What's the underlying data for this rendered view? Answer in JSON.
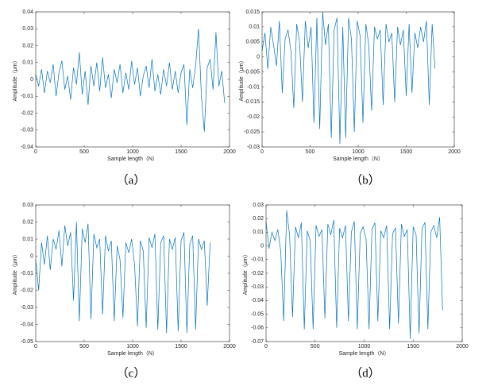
{
  "chart_data": [
    {
      "type": "line",
      "caption": "（a）",
      "xlabel": "Sample length（N）",
      "ylabel": "Amplitude（μm）",
      "color": "#0072bd",
      "xlim": [
        0,
        2000
      ],
      "xticks": [
        0,
        500,
        1000,
        1500,
        2000
      ],
      "ylim": [
        -0.04,
        0.04
      ],
      "yticks": [
        -0.04,
        -0.03,
        -0.02,
        -0.01,
        0,
        0.01,
        0.02,
        0.03,
        0.04
      ],
      "x": [
        0,
        30,
        60,
        90,
        120,
        150,
        180,
        210,
        240,
        270,
        300,
        330,
        360,
        390,
        420,
        450,
        480,
        510,
        540,
        570,
        600,
        630,
        660,
        690,
        720,
        750,
        780,
        810,
        840,
        870,
        900,
        930,
        960,
        990,
        1020,
        1050,
        1080,
        1110,
        1140,
        1170,
        1200,
        1230,
        1260,
        1290,
        1320,
        1350,
        1380,
        1410,
        1440,
        1470,
        1500,
        1530,
        1560,
        1590,
        1620,
        1650,
        1680,
        1710,
        1740,
        1770,
        1800,
        1830,
        1860,
        1890,
        1920,
        1950
      ],
      "values": [
        0.003,
        -0.004,
        0.006,
        -0.008,
        0.005,
        -0.002,
        0.009,
        -0.01,
        0.004,
        0.011,
        -0.006,
        0.002,
        -0.012,
        0.007,
        -0.003,
        0.016,
        -0.009,
        0.005,
        -0.015,
        0.008,
        -0.004,
        0.01,
        -0.007,
        0.013,
        -0.005,
        0.003,
        -0.011,
        0.006,
        -0.002,
        0.009,
        -0.008,
        0.004,
        -0.006,
        0.011,
        -0.003,
        0.007,
        -0.01,
        0.002,
        0.008,
        -0.005,
        0.012,
        -0.007,
        0.003,
        -0.009,
        0.006,
        -0.004,
        0.01,
        -0.006,
        0.005,
        -0.008,
        0.004,
        0.009,
        -0.027,
        0.006,
        -0.005,
        0.008,
        0.03,
        -0.01,
        -0.031,
        0.007,
        0.012,
        -0.006,
        0.028,
        -0.004,
        0.005,
        -0.014
      ]
    },
    {
      "type": "line",
      "caption": "（b）",
      "xlabel": "Sample length（N）",
      "ylabel": "Amplitude（μm）",
      "color": "#0072bd",
      "xlim": [
        0,
        2000
      ],
      "xticks": [
        0,
        500,
        1000,
        1500,
        2000
      ],
      "ylim": [
        -0.03,
        0.015
      ],
      "yticks": [
        -0.03,
        -0.025,
        -0.02,
        -0.015,
        -0.01,
        -0.005,
        0,
        0.005,
        0.01,
        0.015
      ],
      "x": [
        0,
        30,
        60,
        90,
        120,
        150,
        180,
        210,
        240,
        270,
        300,
        330,
        360,
        390,
        420,
        450,
        480,
        510,
        540,
        570,
        600,
        630,
        660,
        690,
        720,
        750,
        780,
        810,
        840,
        870,
        900,
        930,
        960,
        990,
        1020,
        1050,
        1080,
        1110,
        1140,
        1170,
        1200,
        1230,
        1260,
        1290,
        1320,
        1350,
        1380,
        1410,
        1440,
        1470,
        1500,
        1530,
        1560,
        1590,
        1620,
        1650,
        1680,
        1710,
        1740,
        1770,
        1800
      ],
      "values": [
        0.002,
        0.008,
        -0.004,
        0.01,
        0.004,
        -0.003,
        0.012,
        -0.012,
        0.006,
        0.009,
        0.002,
        -0.017,
        0.011,
        0.005,
        -0.015,
        0.012,
        0.003,
        0.01,
        -0.022,
        0.013,
        -0.024,
        0.015,
        0.004,
        0.011,
        -0.027,
        0.009,
        0.013,
        -0.029,
        0.01,
        -0.027,
        0.013,
        0.006,
        -0.025,
        0.012,
        0.007,
        -0.022,
        0.011,
        0.004,
        -0.018,
        0.01,
        0.006,
        0.009,
        -0.016,
        0.011,
        0.005,
        0.008,
        -0.015,
        0.01,
        0.004,
        0.009,
        -0.013,
        0.011,
        -0.012,
        0.008,
        0.003,
        0.01,
        0.005,
        0.012,
        -0.016,
        0.011,
        -0.004
      ]
    },
    {
      "type": "line",
      "caption": "（c）",
      "xlabel": "Sample length（N）",
      "ylabel": "Amplitude（μm）",
      "color": "#0072bd",
      "xlim": [
        0,
        2000
      ],
      "xticks": [
        0,
        500,
        1000,
        1500,
        2000
      ],
      "ylim": [
        -0.05,
        0.03
      ],
      "yticks": [
        -0.05,
        -0.04,
        -0.03,
        -0.02,
        -0.01,
        0,
        0.01,
        0.02,
        0.03
      ],
      "x": [
        0,
        30,
        60,
        90,
        120,
        150,
        180,
        210,
        240,
        270,
        300,
        330,
        360,
        390,
        420,
        450,
        480,
        510,
        540,
        570,
        600,
        630,
        660,
        690,
        720,
        750,
        780,
        810,
        840,
        870,
        900,
        930,
        960,
        990,
        1020,
        1050,
        1080,
        1110,
        1140,
        1170,
        1200,
        1230,
        1260,
        1290,
        1320,
        1350,
        1380,
        1410,
        1440,
        1470,
        1500,
        1530,
        1560,
        1590,
        1620,
        1650,
        1680,
        1710,
        1740,
        1770,
        1800
      ],
      "values": [
        -0.002,
        -0.02,
        0.008,
        -0.005,
        0.012,
        -0.008,
        0.01,
        0.004,
        0.015,
        -0.006,
        0.018,
        0.006,
        0.014,
        -0.026,
        0.02,
        -0.038,
        0.016,
        0.008,
        0.019,
        -0.037,
        0.013,
        0.005,
        0.01,
        -0.034,
        0.012,
        0.003,
        0.009,
        -0.038,
        0.006,
        -0.002,
        -0.036,
        0.008,
        0.002,
        0.01,
        -0.005,
        -0.041,
        0.009,
        0.003,
        -0.042,
        0.011,
        0.005,
        0.013,
        -0.043,
        0.008,
        0.012,
        -0.045,
        0.01,
        0.004,
        0.011,
        -0.044,
        0.009,
        0.014,
        -0.045,
        0.007,
        0.012,
        -0.043,
        0.01,
        0.004,
        0.009,
        -0.029,
        0.008
      ]
    },
    {
      "type": "line",
      "caption": "（d）",
      "xlabel": "Sample length（N）",
      "ylabel": "Amplitude（μm）",
      "color": "#0072bd",
      "xlim": [
        0,
        2000
      ],
      "xticks": [
        0,
        500,
        1000,
        1500,
        2000
      ],
      "ylim": [
        -0.07,
        0.03
      ],
      "yticks": [
        -0.07,
        -0.06,
        -0.05,
        -0.04,
        -0.03,
        -0.02,
        -0.01,
        0,
        0.01,
        0.02,
        0.03
      ],
      "x": [
        0,
        30,
        60,
        90,
        120,
        150,
        180,
        210,
        240,
        270,
        300,
        330,
        360,
        390,
        420,
        450,
        480,
        510,
        540,
        570,
        600,
        630,
        660,
        690,
        720,
        750,
        780,
        810,
        840,
        870,
        900,
        930,
        960,
        990,
        1020,
        1050,
        1080,
        1110,
        1140,
        1170,
        1200,
        1230,
        1260,
        1290,
        1320,
        1350,
        1380,
        1410,
        1440,
        1470,
        1500,
        1530,
        1560,
        1590,
        1620,
        1650,
        1680,
        1710,
        1740,
        1770,
        1800
      ],
      "values": [
        0.018,
        -0.002,
        0.01,
        0.004,
        0.012,
        -0.004,
        -0.055,
        0.026,
        0.008,
        -0.052,
        0.014,
        0.006,
        0.017,
        -0.061,
        0.011,
        0.004,
        -0.061,
        0.015,
        0.007,
        0.012,
        -0.053,
        0.016,
        0.008,
        0.019,
        -0.06,
        0.013,
        0.006,
        0.015,
        -0.055,
        0.01,
        0.018,
        -0.061,
        0.009,
        0.014,
        0.005,
        -0.061,
        0.012,
        0.017,
        -0.055,
        0.011,
        0.006,
        0.015,
        -0.061,
        0.009,
        0.013,
        -0.057,
        0.016,
        0.007,
        0.012,
        -0.068,
        0.014,
        0.008,
        -0.064,
        0.013,
        0.017,
        -0.061,
        0.01,
        0.015,
        0.006,
        0.021,
        -0.047
      ]
    }
  ]
}
